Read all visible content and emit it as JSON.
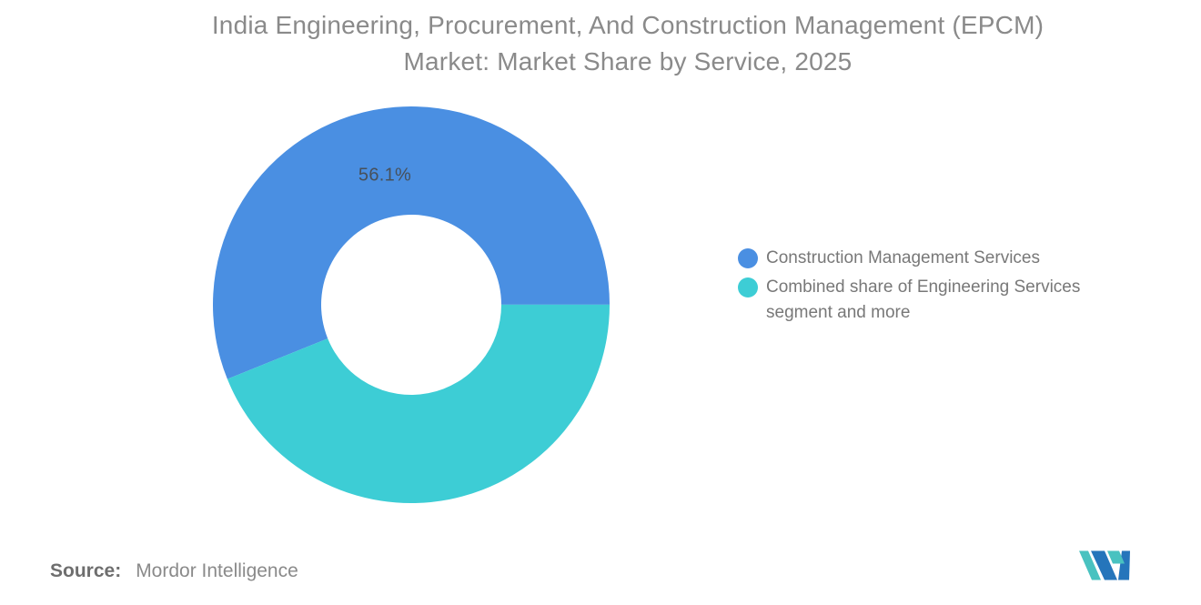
{
  "header": {
    "title_line1": "India Engineering, Procurement, And Construction Management (EPCM)",
    "title_line2": "Market: Market Share by Service, 2025"
  },
  "chart_data": {
    "type": "pie",
    "subtype": "donut",
    "title": "India Engineering, Procurement, And Construction Management (EPCM) Market: Market Share by Service, 2025",
    "year": "2025",
    "unit": "%",
    "start_angle_deg": 248,
    "outer_radius_px": 218,
    "inner_radius_px": 99,
    "legend_position": "right",
    "slices": [
      {
        "label": "Construction Management Services",
        "value": 56.1,
        "display_value": "56.1%",
        "color": "#4A8FE2"
      },
      {
        "label": "Combined share of Engineering Services segment and more",
        "value": 43.9,
        "display_value": "",
        "color": "#3DCDD5"
      }
    ]
  },
  "source": {
    "label": "Source:",
    "value": "Mordor Intelligence"
  },
  "logo": {
    "name": "mordor-intelligence-logo"
  },
  "colors": {
    "background": "#FFFFFF",
    "title_text": "#8A8A8A",
    "label_text": "#47505A",
    "legend_text": "#787878",
    "source_label": "#6E6E6E",
    "source_text": "#8A8A8A",
    "logo_blue": "#2575BB",
    "logo_teal": "#49C2C0"
  }
}
